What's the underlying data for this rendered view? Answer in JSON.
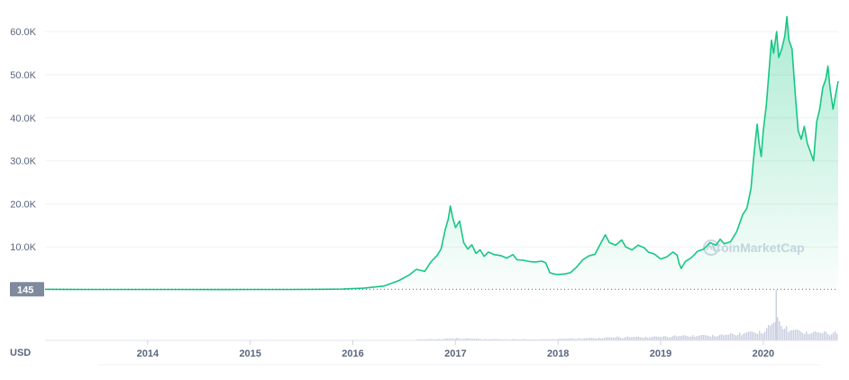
{
  "chart_data": {
    "type": "area",
    "currency_label": "USD",
    "watermark": "CoinMarketCap",
    "current_value_label": "145",
    "y_ticks": [
      {
        "value": 10000,
        "label": "10.0K"
      },
      {
        "value": 20000,
        "label": "20.0K"
      },
      {
        "value": 30000,
        "label": "30.0K"
      },
      {
        "value": 40000,
        "label": "40.0K"
      },
      {
        "value": 50000,
        "label": "50.0K"
      },
      {
        "value": 60000,
        "label": "60.0K"
      }
    ],
    "x_ticks": [
      {
        "value": 2014,
        "label": "2014"
      },
      {
        "value": 2015,
        "label": "2015"
      },
      {
        "value": 2016,
        "label": "2016"
      },
      {
        "value": 2017,
        "label": "2017"
      },
      {
        "value": 2018,
        "label": "2018"
      },
      {
        "value": 2019,
        "label": "2019"
      },
      {
        "value": 2020,
        "label": "2020"
      }
    ],
    "xlim": [
      2013.0,
      2020.73
    ],
    "ylim": [
      0,
      64000
    ],
    "reference_value": 145,
    "series": [
      {
        "values": [
          [
            2013.0,
            145
          ],
          [
            2013.2,
            130
          ],
          [
            2013.4,
            110
          ],
          [
            2013.7,
            105
          ],
          [
            2014.0,
            100
          ],
          [
            2014.3,
            95
          ],
          [
            2014.6,
            92
          ],
          [
            2015.0,
            95
          ],
          [
            2015.4,
            110
          ],
          [
            2015.7,
            140
          ],
          [
            2015.9,
            200
          ],
          [
            2016.1,
            400
          ],
          [
            2016.3,
            900
          ],
          [
            2016.45,
            2200
          ],
          [
            2016.55,
            3500
          ],
          [
            2016.62,
            4800
          ],
          [
            2016.7,
            4300
          ],
          [
            2016.76,
            6500
          ],
          [
            2016.82,
            8000
          ],
          [
            2016.86,
            9500
          ],
          [
            2016.9,
            14000
          ],
          [
            2016.93,
            16500
          ],
          [
            2016.95,
            19500
          ],
          [
            2016.97,
            17000
          ],
          [
            2017.0,
            14500
          ],
          [
            2017.04,
            16000
          ],
          [
            2017.08,
            11000
          ],
          [
            2017.12,
            9500
          ],
          [
            2017.16,
            10500
          ],
          [
            2017.2,
            8500
          ],
          [
            2017.24,
            9300
          ],
          [
            2017.28,
            7800
          ],
          [
            2017.32,
            8800
          ],
          [
            2017.38,
            8200
          ],
          [
            2017.44,
            8000
          ],
          [
            2017.5,
            7400
          ],
          [
            2017.56,
            8200
          ],
          [
            2017.6,
            7000
          ],
          [
            2017.66,
            6900
          ],
          [
            2017.72,
            6600
          ],
          [
            2017.78,
            6500
          ],
          [
            2017.84,
            6700
          ],
          [
            2017.88,
            6300
          ],
          [
            2017.92,
            4000
          ],
          [
            2017.96,
            3700
          ],
          [
            2018.0,
            3600
          ],
          [
            2018.06,
            3700
          ],
          [
            2018.12,
            4000
          ],
          [
            2018.18,
            5300
          ],
          [
            2018.24,
            7000
          ],
          [
            2018.3,
            7900
          ],
          [
            2018.36,
            8300
          ],
          [
            2018.42,
            11000
          ],
          [
            2018.46,
            12800
          ],
          [
            2018.5,
            11000
          ],
          [
            2018.56,
            10400
          ],
          [
            2018.62,
            11600
          ],
          [
            2018.66,
            10000
          ],
          [
            2018.72,
            9300
          ],
          [
            2018.78,
            10400
          ],
          [
            2018.84,
            9800
          ],
          [
            2018.88,
            8800
          ],
          [
            2018.94,
            8300
          ],
          [
            2019.0,
            7200
          ],
          [
            2019.06,
            7700
          ],
          [
            2019.12,
            8800
          ],
          [
            2019.16,
            8100
          ],
          [
            2019.18,
            6200
          ],
          [
            2019.2,
            5000
          ],
          [
            2019.24,
            6600
          ],
          [
            2019.3,
            7500
          ],
          [
            2019.36,
            9000
          ],
          [
            2019.42,
            9500
          ],
          [
            2019.48,
            11000
          ],
          [
            2019.54,
            10400
          ],
          [
            2019.58,
            11800
          ],
          [
            2019.62,
            10700
          ],
          [
            2019.68,
            11200
          ],
          [
            2019.74,
            13500
          ],
          [
            2019.8,
            17500
          ],
          [
            2019.84,
            19000
          ],
          [
            2019.88,
            23500
          ],
          [
            2019.9,
            29000
          ],
          [
            2019.92,
            34000
          ],
          [
            2019.94,
            38500
          ],
          [
            2019.96,
            34000
          ],
          [
            2019.98,
            31000
          ],
          [
            2020.0,
            37000
          ],
          [
            2020.03,
            43000
          ],
          [
            2020.06,
            52000
          ],
          [
            2020.08,
            58000
          ],
          [
            2020.1,
            55000
          ],
          [
            2020.13,
            60000
          ],
          [
            2020.15,
            54000
          ],
          [
            2020.18,
            56000
          ],
          [
            2020.21,
            59000
          ],
          [
            2020.23,
            63500
          ],
          [
            2020.25,
            58000
          ],
          [
            2020.28,
            56000
          ],
          [
            2020.31,
            46000
          ],
          [
            2020.34,
            37000
          ],
          [
            2020.37,
            35000
          ],
          [
            2020.4,
            38000
          ],
          [
            2020.43,
            34000
          ],
          [
            2020.46,
            32000
          ],
          [
            2020.49,
            30000
          ],
          [
            2020.52,
            39000
          ],
          [
            2020.55,
            42000
          ],
          [
            2020.58,
            47000
          ],
          [
            2020.61,
            49000
          ],
          [
            2020.63,
            52000
          ],
          [
            2020.65,
            47000
          ],
          [
            2020.68,
            42000
          ],
          [
            2020.71,
            46000
          ],
          [
            2020.73,
            48500
          ]
        ]
      }
    ],
    "volume": [
      [
        2016.6,
        0.04
      ],
      [
        2017.0,
        0.1
      ],
      [
        2017.4,
        0.06
      ],
      [
        2017.8,
        0.05
      ],
      [
        2018.2,
        0.1
      ],
      [
        2018.6,
        0.16
      ],
      [
        2019.0,
        0.18
      ],
      [
        2019.3,
        0.24
      ],
      [
        2019.6,
        0.26
      ],
      [
        2019.85,
        0.4
      ],
      [
        2020.0,
        0.45
      ],
      [
        2020.12,
        1.0
      ],
      [
        2020.25,
        0.55
      ],
      [
        2020.4,
        0.42
      ],
      [
        2020.55,
        0.38
      ],
      [
        2020.73,
        0.35
      ]
    ],
    "colors": {
      "line": "#16c784",
      "area_top": "#16c784",
      "grid": "#eff2f5",
      "axis_text": "#58667e",
      "badge": "#808a9d",
      "volume": "#c9cfe0"
    }
  }
}
